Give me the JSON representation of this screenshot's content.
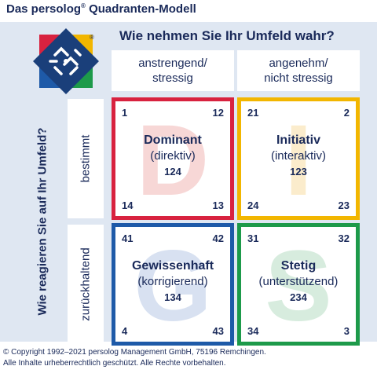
{
  "title": {
    "prefix": "Das persolog",
    "mark": "®",
    "suffix": " Quadranten-Modell"
  },
  "top_question": "Wie nehmen Sie Ihr Umfeld wahr?",
  "side_question": "Wie reagieren Sie auf Ihr Umfeld?",
  "columns": [
    {
      "line1": "anstrengend/",
      "line2": "stressig"
    },
    {
      "line1": "angenehm/",
      "line2": "nicht stressig"
    }
  ],
  "rows": [
    "bestimmt",
    "zurückhaltend"
  ],
  "quadrants": {
    "d": {
      "letter": "D",
      "name": "Dominant",
      "sub": "(direktiv)",
      "code": "124",
      "tl": "1",
      "tr": "12",
      "bl": "14",
      "br": "13",
      "color": "#d8223f"
    },
    "i": {
      "letter": "I",
      "name": "Initiativ",
      "sub": "(interaktiv)",
      "code": "123",
      "tl": "21",
      "tr": "2",
      "bl": "24",
      "br": "23",
      "color": "#f2b600"
    },
    "g": {
      "letter": "G",
      "name": "Gewissenhaft",
      "sub": "(korrigierend)",
      "code": "134",
      "tl": "41",
      "tr": "42",
      "bl": "4",
      "br": "43",
      "color": "#1e5aa8"
    },
    "s": {
      "letter": "S",
      "name": "Stetig",
      "sub": "(unterstützend)",
      "code": "234",
      "tl": "31",
      "tr": "32",
      "bl": "34",
      "br": "3",
      "color": "#1d9a4a"
    }
  },
  "copyright": {
    "line1": "© Copyright 1992–2021 persolog Management GmbH, 75196 Remchingen.",
    "line2": "Alle Inhalte urheberrechtlich geschützt. Alle Rechte vorbehalten."
  },
  "logo": {
    "icon": "persolog-logo-icon",
    "mark": "®"
  }
}
